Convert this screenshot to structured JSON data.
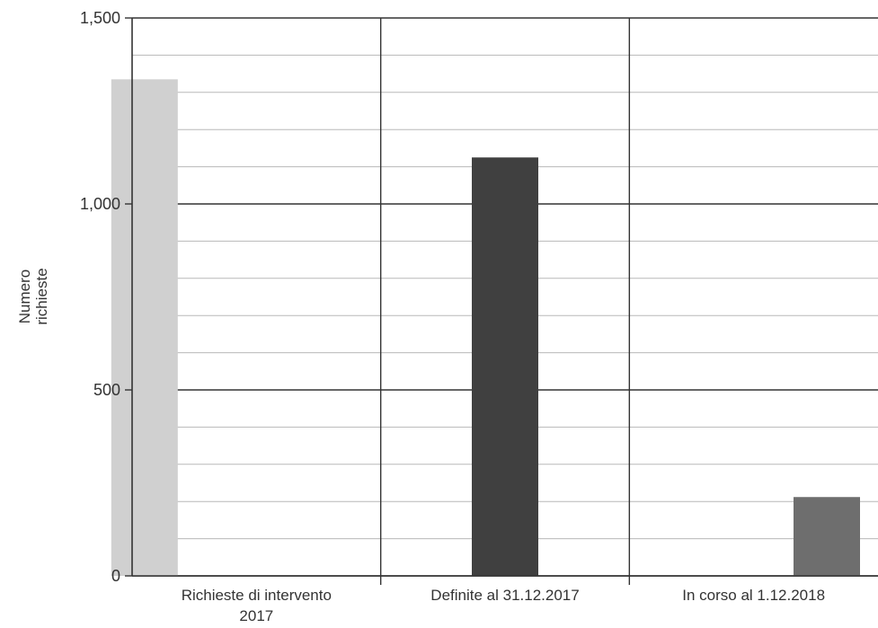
{
  "chart_data": {
    "type": "bar",
    "categories": [
      "Richieste di intervento 2017",
      "Definite al 31.12.2017",
      "In corso al 1.12.2018"
    ],
    "category_label_lines": [
      [
        "Richieste di intervento",
        "2017"
      ],
      [
        "Definite al 31.12.2017"
      ],
      [
        "In corso al 1.12.2018"
      ]
    ],
    "values": [
      1335,
      1125,
      212
    ],
    "bar_colors": [
      "#d0d0d0",
      "#404040",
      "#6e6e6e"
    ],
    "title": "",
    "xlabel": "",
    "ylabel_lines": [
      "Numero",
      "richieste"
    ],
    "ylim": [
      0,
      1500
    ],
    "yticks": [
      0,
      500,
      1000,
      1500
    ],
    "ytick_labels": [
      "0",
      "500",
      "1,000",
      "1,500"
    ],
    "minor_step": 100,
    "grid": true,
    "legend": "none"
  }
}
